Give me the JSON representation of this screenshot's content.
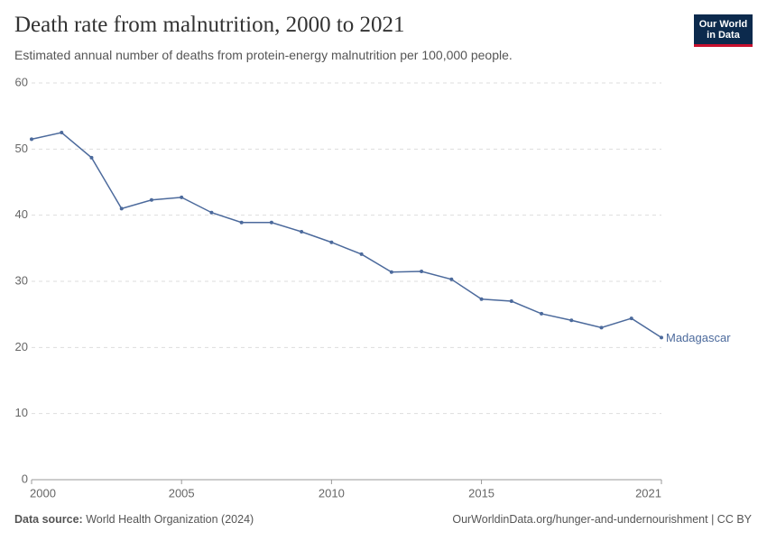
{
  "chart_data": {
    "type": "line",
    "title": "Death rate from malnutrition, 2000 to 2021",
    "subtitle": "Estimated annual number of deaths from protein-energy malnutrition per 100,000 people.",
    "logo": [
      "Our World",
      "in Data"
    ],
    "source_label": "Data source:",
    "source": "World Health Organization (2024)",
    "footer_right": "OurWorldinData.org/hunger-and-undernourishment | CC BY",
    "x": [
      2000,
      2001,
      2002,
      2003,
      2004,
      2005,
      2006,
      2007,
      2008,
      2009,
      2010,
      2011,
      2012,
      2013,
      2014,
      2015,
      2016,
      2017,
      2018,
      2019,
      2020,
      2021
    ],
    "series": [
      {
        "name": "Madagascar",
        "color": "#4c6a9c",
        "values": [
          51.5,
          52.5,
          48.7,
          41.0,
          42.3,
          42.7,
          40.4,
          38.9,
          38.9,
          37.5,
          35.9,
          34.1,
          31.4,
          31.5,
          30.3,
          27.3,
          27.0,
          25.1,
          24.1,
          23.0,
          24.4,
          21.5
        ]
      }
    ],
    "xlim": [
      2000,
      2021
    ],
    "xticks": [
      2000,
      2005,
      2010,
      2015,
      2021
    ],
    "ylim": [
      0,
      60
    ],
    "yticks": [
      0,
      10,
      20,
      30,
      40,
      50,
      60
    ],
    "grid": true
  }
}
